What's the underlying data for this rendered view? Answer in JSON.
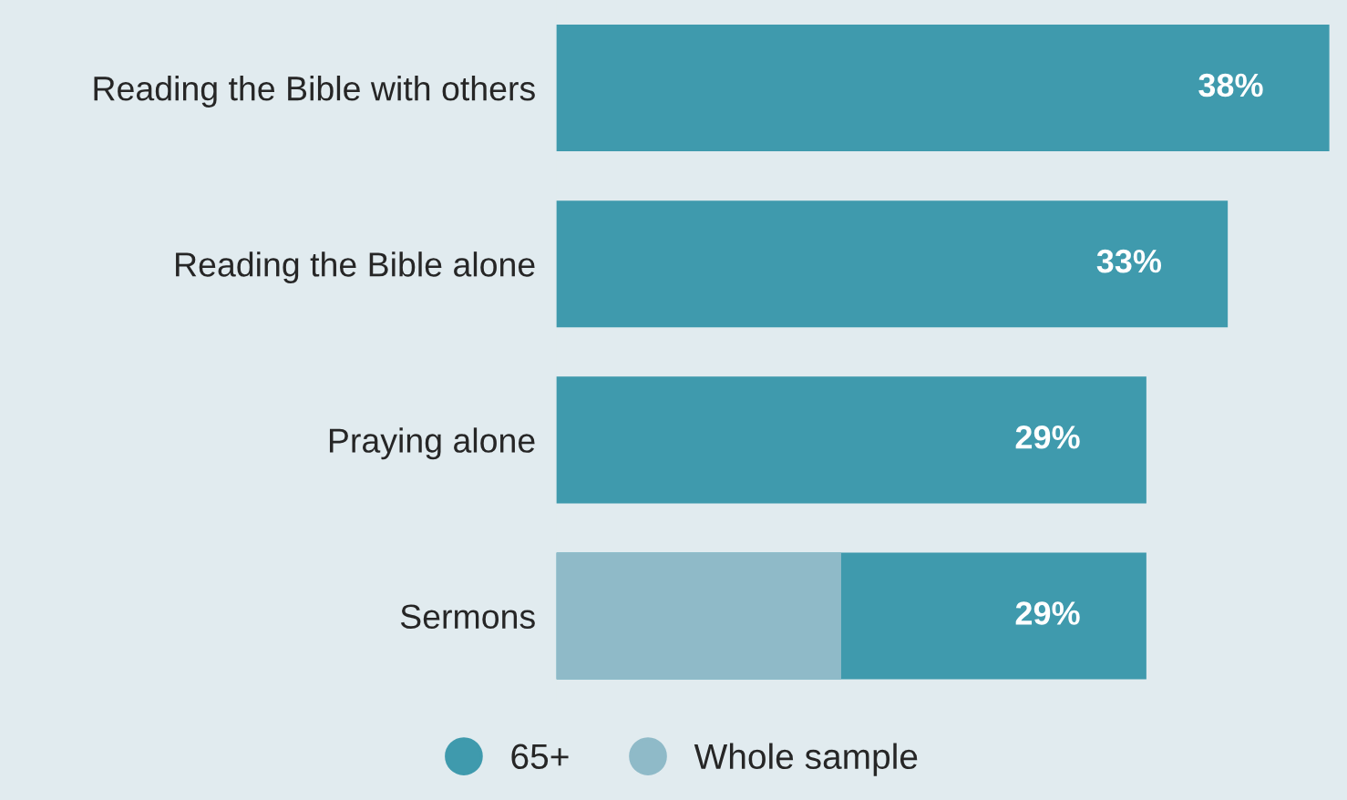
{
  "chart_data": {
    "type": "bar",
    "orientation": "horizontal",
    "categories": [
      "Reading the Bible with others",
      "Reading the Bible alone",
      "Praying alone",
      "Sermons"
    ],
    "series": [
      {
        "name": "65+",
        "color": "#3f9aad",
        "values": [
          38,
          33,
          29,
          29
        ],
        "value_labels": [
          "38%",
          "33%",
          "29%",
          "29%"
        ]
      },
      {
        "name": "Whole sample",
        "color": "#8fbac8",
        "values": [
          null,
          null,
          null,
          14
        ]
      }
    ],
    "legend": "bottom",
    "grid": false,
    "tick_labels": "y"
  }
}
